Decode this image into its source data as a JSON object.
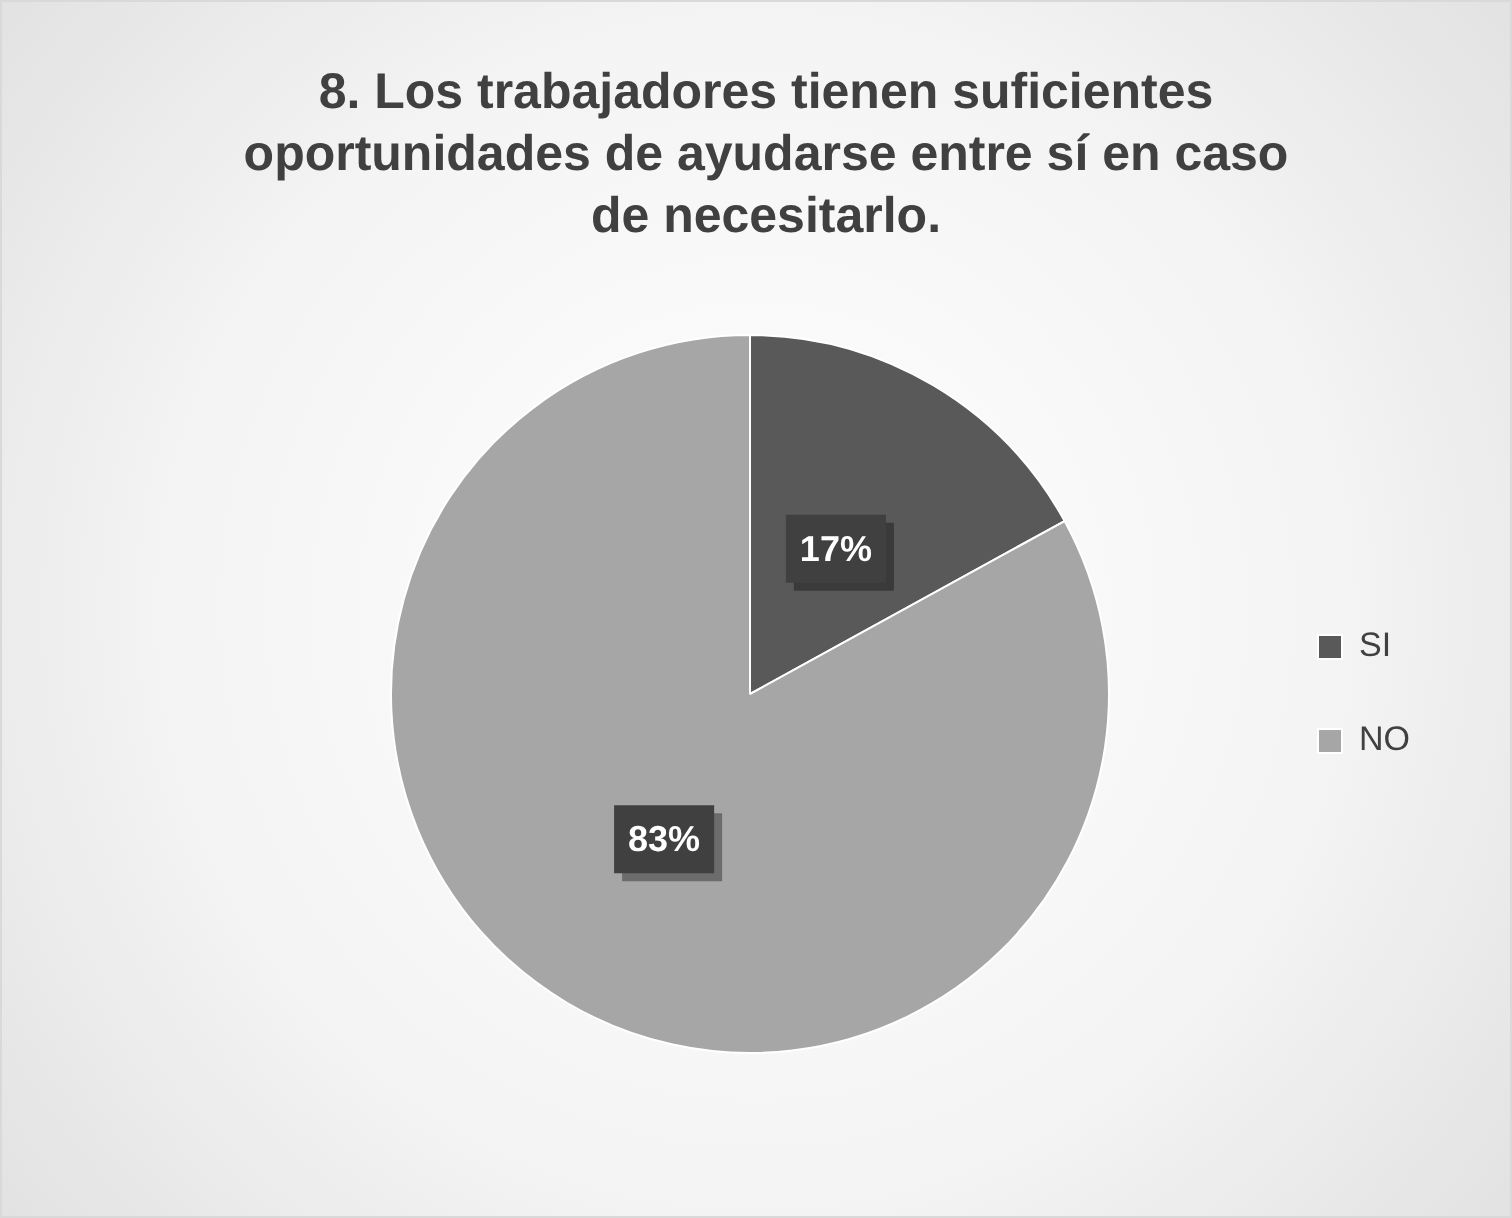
{
  "chart_data": {
    "type": "pie",
    "title": "8. Los trabajadores tienen suficientes oportunidades de ayudarse entre sí en caso de necesitarlo.",
    "categories": [
      "SI",
      "NO"
    ],
    "values": [
      17,
      83
    ],
    "colors": [
      "#595959",
      "#a6a6a6"
    ],
    "value_labels": [
      "17%",
      "83%"
    ],
    "legend": "right"
  }
}
